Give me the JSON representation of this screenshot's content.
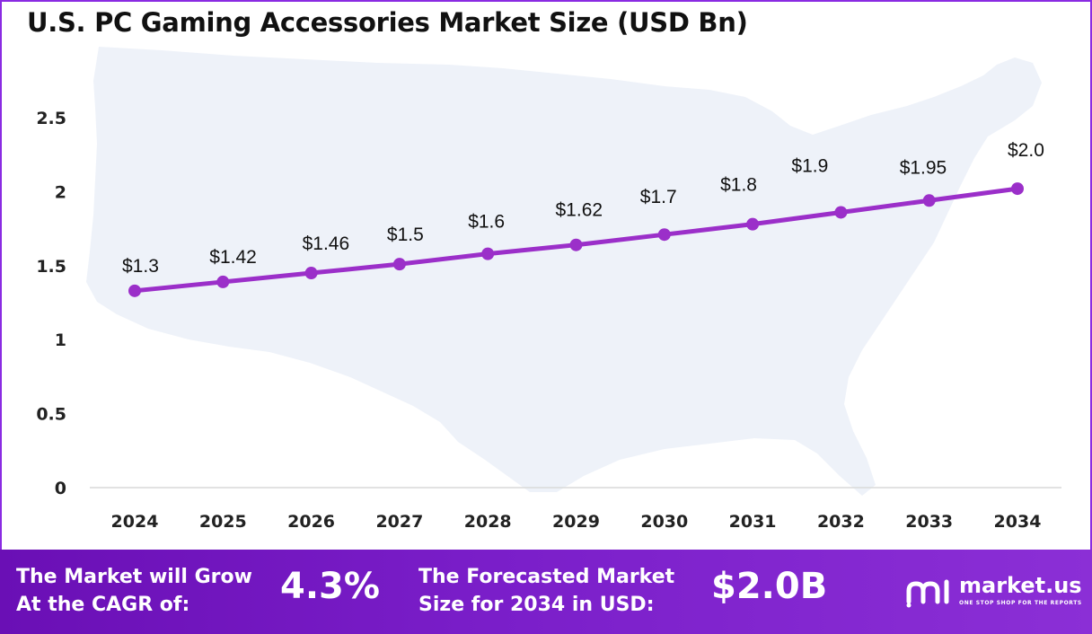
{
  "title": "U.S. PC Gaming Accessories Market Size (USD Bn)",
  "chart_data": {
    "type": "line",
    "title": "U.S. PC Gaming Accessories Market Size (USD Bn)",
    "categories": [
      "2024",
      "2025",
      "2026",
      "2027",
      "2028",
      "2029",
      "2030",
      "2031",
      "2032",
      "2033",
      "2034"
    ],
    "values": [
      1.3,
      1.42,
      1.46,
      1.5,
      1.6,
      1.62,
      1.7,
      1.8,
      1.9,
      1.95,
      2.0
    ],
    "plotted_values": [
      1.33,
      1.39,
      1.45,
      1.51,
      1.58,
      1.64,
      1.71,
      1.78,
      1.86,
      1.94,
      2.02
    ],
    "data_labels": [
      "$1.3",
      "$1.42",
      "$1.46",
      "$1.5",
      "$1.6",
      "$1.62",
      "$1.7",
      "$1.8",
      "$1.9",
      "$1.95",
      "$2.0"
    ],
    "y_ticks": [
      "0",
      "0.5",
      "1",
      "1.5",
      "2",
      "2.5"
    ],
    "ylim": [
      0,
      2.5
    ],
    "grid": false,
    "legend": "none",
    "line_color": "#9b2fc9",
    "background_image": "us-map-silhouette"
  },
  "footer": {
    "cagr_label": [
      "The Market will Grow",
      "At the CAGR of:"
    ],
    "cagr_value": "4.3%",
    "forecast_label": [
      "The Forecasted Market",
      "Size for 2034 in USD:"
    ],
    "forecast_value": "$2.0B",
    "brand_name": "market.us",
    "brand_tagline": "ONE STOP SHOP FOR THE REPORTS",
    "brand_icon": "market-us-logo-icon",
    "background_color": "#7a1ec9"
  }
}
